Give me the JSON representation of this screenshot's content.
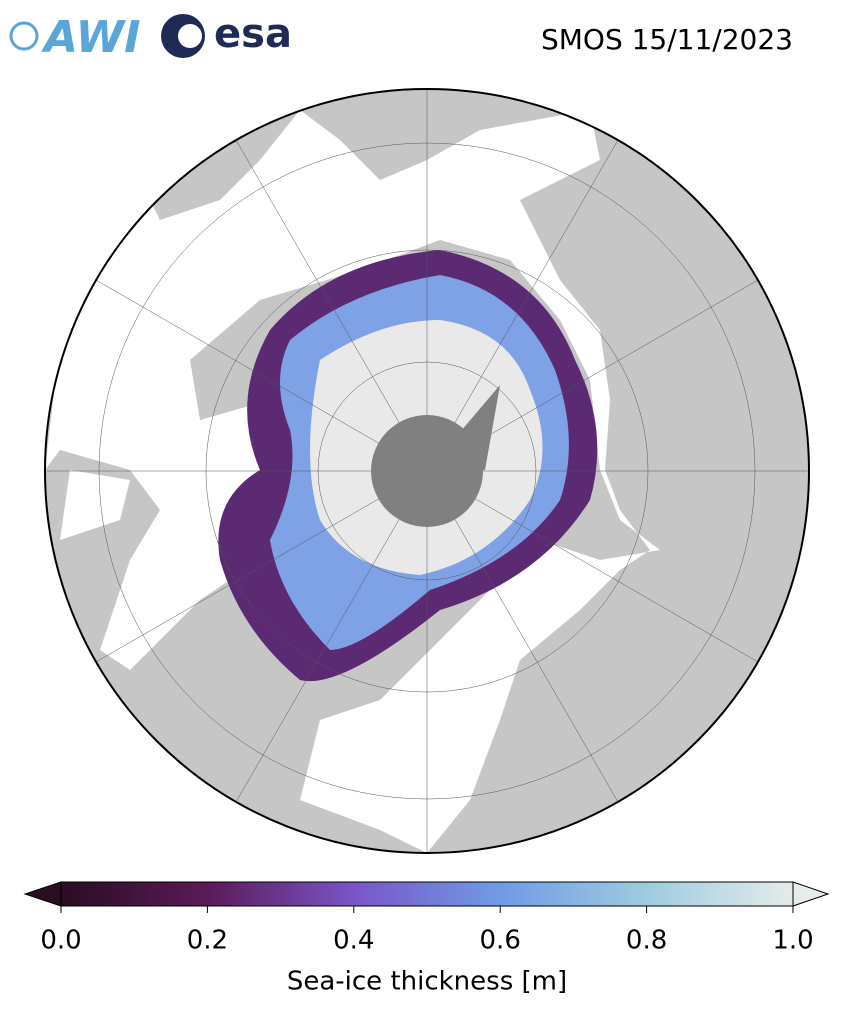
{
  "header": {
    "title": "SMOS 15/11/2023",
    "logos": [
      "AWI",
      "esa"
    ]
  },
  "colorbar": {
    "label": "Sea-ice thickness [m]",
    "lim": [
      0,
      1
    ],
    "ticks": [
      {
        "value": 0,
        "label": "0.0"
      },
      {
        "value": 0.2,
        "label": "0.2"
      },
      {
        "value": 0.4,
        "label": "0.4"
      },
      {
        "value": 0.6,
        "label": "0.6"
      },
      {
        "value": 0.8,
        "label": "0.8"
      },
      {
        "value": 1,
        "label": "1.0"
      }
    ],
    "colors": [
      "#2a0d23",
      "#5b1a58",
      "#7a55c8",
      "#6f9be6",
      "#9fcbe0",
      "#e5ecea"
    ]
  }
}
